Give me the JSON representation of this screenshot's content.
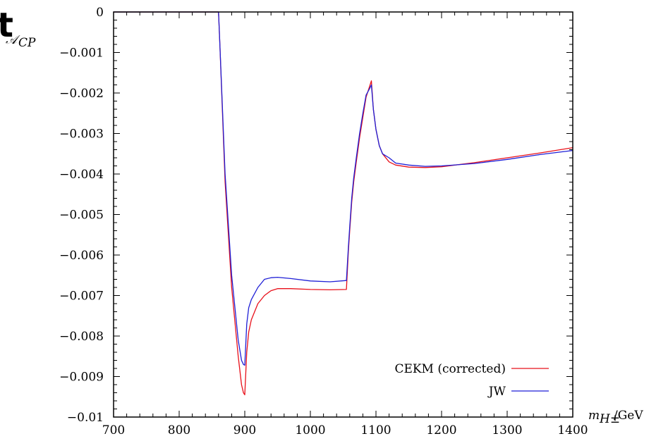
{
  "chart_data": {
    "type": "line",
    "corner_glyph": "t",
    "ylabel": "𝒜",
    "ylabel_sub": "CP",
    "xlabel_main": "m",
    "xlabel_sub": "H±",
    "xlabel_unit": "/GeV",
    "xlim": [
      700,
      1400
    ],
    "ylim": [
      -0.01,
      0
    ],
    "xticks": [
      700,
      800,
      900,
      1000,
      1100,
      1200,
      1300,
      1400
    ],
    "yticks": [
      0,
      -0.001,
      -0.002,
      -0.003,
      -0.004,
      -0.005,
      -0.006,
      -0.007,
      -0.008,
      -0.009,
      -0.01
    ],
    "ytick_labels": [
      "0",
      "−0.001",
      "−0.002",
      "−0.003",
      "−0.004",
      "−0.005",
      "−0.006",
      "−0.007",
      "−0.008",
      "−0.009",
      "−0.01"
    ],
    "grid": false,
    "legend_position": "bottom-right",
    "series": [
      {
        "name": "CEKM (corrected)",
        "color": "#e8101a",
        "x": [
          700,
          860,
          862,
          866,
          870,
          880,
          890,
          895,
          898,
          900,
          903,
          906,
          910,
          920,
          930,
          940,
          950,
          970,
          1000,
          1030,
          1055,
          1058,
          1060,
          1063,
          1066,
          1070,
          1075,
          1080,
          1085,
          1090,
          1093,
          1096,
          1100,
          1105,
          1110,
          1120,
          1130,
          1150,
          1175,
          1200,
          1250,
          1300,
          1350,
          1400
        ],
        "y": [
          0,
          0,
          -0.0008,
          -0.0025,
          -0.0042,
          -0.0068,
          -0.0085,
          -0.0092,
          -0.0094,
          -0.00945,
          -0.0084,
          -0.0079,
          -0.0076,
          -0.0072,
          -0.007,
          -0.00688,
          -0.00683,
          -0.00683,
          -0.00685,
          -0.00686,
          -0.00685,
          -0.0059,
          -0.0054,
          -0.0047,
          -0.0042,
          -0.0037,
          -0.0031,
          -0.0026,
          -0.0021,
          -0.00185,
          -0.0017,
          -0.0024,
          -0.0029,
          -0.0033,
          -0.0035,
          -0.0037,
          -0.00378,
          -0.00383,
          -0.00384,
          -0.00382,
          -0.00372,
          -0.0036,
          -0.00348,
          -0.00335
        ]
      },
      {
        "name": "JW",
        "color": "#1f1fd6",
        "x": [
          700,
          860,
          862,
          866,
          870,
          880,
          890,
          895,
          898,
          900,
          903,
          906,
          910,
          920,
          930,
          940,
          950,
          970,
          1000,
          1030,
          1055,
          1058,
          1060,
          1063,
          1066,
          1070,
          1075,
          1080,
          1085,
          1090,
          1093,
          1096,
          1100,
          1105,
          1110,
          1120,
          1130,
          1150,
          1175,
          1200,
          1250,
          1300,
          1350,
          1400
        ],
        "y": [
          0,
          0,
          -0.0008,
          -0.0024,
          -0.004,
          -0.0065,
          -0.0081,
          -0.0086,
          -0.0087,
          -0.00872,
          -0.0077,
          -0.0073,
          -0.0071,
          -0.0068,
          -0.0066,
          -0.00656,
          -0.00655,
          -0.00658,
          -0.00664,
          -0.00666,
          -0.00663,
          -0.0058,
          -0.0053,
          -0.0046,
          -0.0041,
          -0.0036,
          -0.003,
          -0.0025,
          -0.00205,
          -0.0019,
          -0.0018,
          -0.0024,
          -0.0029,
          -0.0033,
          -0.0035,
          -0.0036,
          -0.00373,
          -0.00378,
          -0.00381,
          -0.0038,
          -0.00374,
          -0.00364,
          -0.00352,
          -0.00342
        ]
      }
    ]
  }
}
